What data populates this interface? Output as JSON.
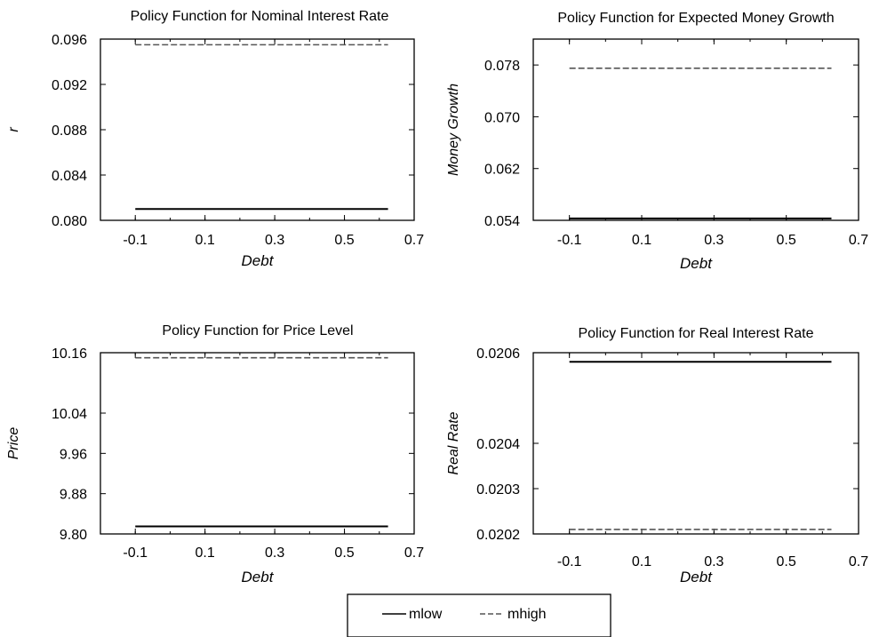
{
  "legend": {
    "entries": [
      {
        "label": "mlow",
        "style": "solid"
      },
      {
        "label": "mhigh",
        "style": "dashed"
      }
    ]
  },
  "colors": {
    "mlow": "#000000",
    "mhigh": "#555555",
    "axis": "#000000",
    "background": "#ffffff"
  },
  "chart_data": [
    {
      "type": "line",
      "title": "Policy Function for Nominal Interest Rate",
      "xlabel": "Debt",
      "ylabel": "r",
      "x_ticks": [
        "-0.1",
        "0.1",
        "0.3",
        "0.5",
        "0.7"
      ],
      "y_ticks": [
        "0.080",
        "0.084",
        "0.088",
        "0.092",
        "0.096"
      ],
      "xlim": [
        -0.2,
        0.7
      ],
      "ylim": [
        0.08,
        0.096
      ],
      "grid": false,
      "series": [
        {
          "name": "mlow",
          "style": "solid",
          "x": [
            -0.1,
            0.625
          ],
          "y": [
            0.081,
            0.081
          ]
        },
        {
          "name": "mhigh",
          "style": "dashed",
          "x": [
            -0.1,
            0.625
          ],
          "y": [
            0.0955,
            0.0955
          ]
        }
      ]
    },
    {
      "type": "line",
      "title": "Policy Function for Expected Money Growth",
      "xlabel": "Debt",
      "ylabel": "Money Growth",
      "x_ticks": [
        "-0.1",
        "0.1",
        "0.3",
        "0.5",
        "0.7"
      ],
      "y_ticks": [
        "0.054",
        "0.062",
        "0.070",
        "0.078"
      ],
      "xlim": [
        -0.2,
        0.7
      ],
      "ylim": [
        0.054,
        0.082
      ],
      "grid": false,
      "series": [
        {
          "name": "mlow",
          "style": "solid",
          "x": [
            -0.1,
            0.625
          ],
          "y": [
            0.0543,
            0.0543
          ]
        },
        {
          "name": "mhigh",
          "style": "dashed",
          "x": [
            -0.1,
            0.625
          ],
          "y": [
            0.0775,
            0.0775
          ]
        }
      ]
    },
    {
      "type": "line",
      "title": "Policy Function for Price Level",
      "xlabel": "Debt",
      "ylabel": "Price",
      "x_ticks": [
        "-0.1",
        "0.1",
        "0.3",
        "0.5",
        "0.7"
      ],
      "y_ticks": [
        "9.80",
        "9.88",
        "9.96",
        "10.04",
        "10.16"
      ],
      "xlim": [
        -0.2,
        0.7
      ],
      "ylim": [
        9.8,
        10.16
      ],
      "grid": false,
      "series": [
        {
          "name": "mlow",
          "style": "solid",
          "x": [
            -0.1,
            0.625
          ],
          "y": [
            9.815,
            9.815
          ]
        },
        {
          "name": "mhigh",
          "style": "dashed",
          "x": [
            -0.1,
            0.625
          ],
          "y": [
            10.15,
            10.15
          ]
        }
      ]
    },
    {
      "type": "line",
      "title": "Policy Function for Real Interest Rate",
      "xlabel": "Debt",
      "ylabel": "Real Rate",
      "x_ticks": [
        "-0.1",
        "0.1",
        "0.3",
        "0.5",
        "0.7"
      ],
      "y_ticks": [
        "0.0202",
        "0.0203",
        "0.0204",
        "0.0206"
      ],
      "xlim": [
        -0.2,
        0.7
      ],
      "ylim": [
        0.0202,
        0.0206
      ],
      "grid": false,
      "series": [
        {
          "name": "mlow",
          "style": "solid",
          "x": [
            -0.1,
            0.625
          ],
          "y": [
            0.02058,
            0.02058
          ]
        },
        {
          "name": "mhigh",
          "style": "dashed",
          "x": [
            -0.1,
            0.625
          ],
          "y": [
            0.02021,
            0.02021
          ]
        }
      ]
    }
  ]
}
